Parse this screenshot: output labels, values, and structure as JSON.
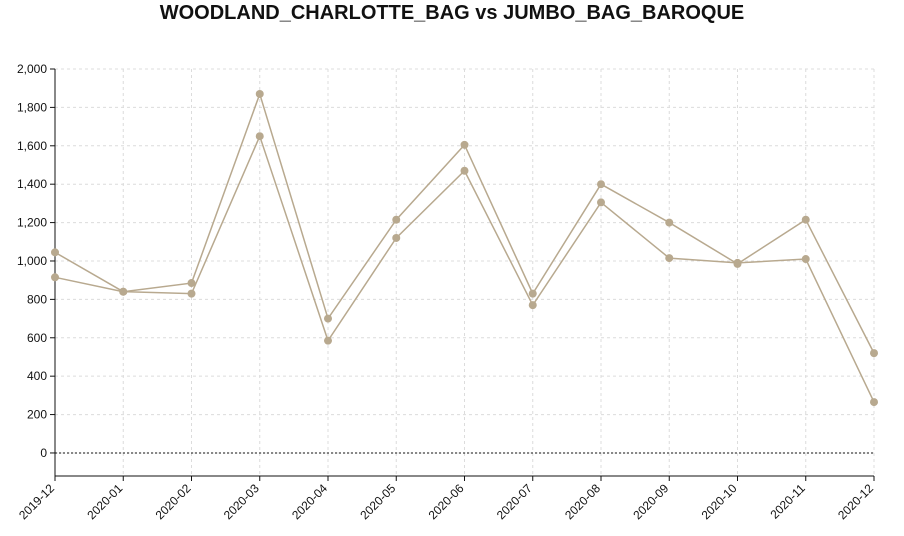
{
  "chart_data": {
    "type": "line",
    "title": "WOODLAND_CHARLOTTE_BAG vs JUMBO_BAG_BAROQUE",
    "xlabel": "",
    "ylabel": "",
    "categories": [
      "2019-12",
      "2020-01",
      "2020-02",
      "2020-03",
      "2020-04",
      "2020-05",
      "2020-06",
      "2020-07",
      "2020-08",
      "2020-09",
      "2020-10",
      "2020-11",
      "2020-12"
    ],
    "series": [
      {
        "values": [
          1045,
          840,
          885,
          1870,
          700,
          1215,
          1605,
          830,
          1400,
          1200,
          985,
          1215,
          520
        ]
      },
      {
        "values": [
          915,
          840,
          830,
          1650,
          585,
          1120,
          1470,
          770,
          1305,
          1015,
          990,
          1010,
          265
        ]
      }
    ],
    "ylim": [
      -120,
      2000
    ],
    "yticks": [
      0,
      200,
      400,
      600,
      800,
      1000,
      1200,
      1400,
      1600,
      1800,
      2000
    ],
    "ytick_labels": [
      "0",
      "200",
      "400",
      "600",
      "800",
      "1,000",
      "1,200",
      "1,400",
      "1,600",
      "1,800",
      "2,000"
    ],
    "grid": true,
    "zero_line": "dotted",
    "line_color": "#b8a98f",
    "marker_color": "#b8a98f"
  }
}
